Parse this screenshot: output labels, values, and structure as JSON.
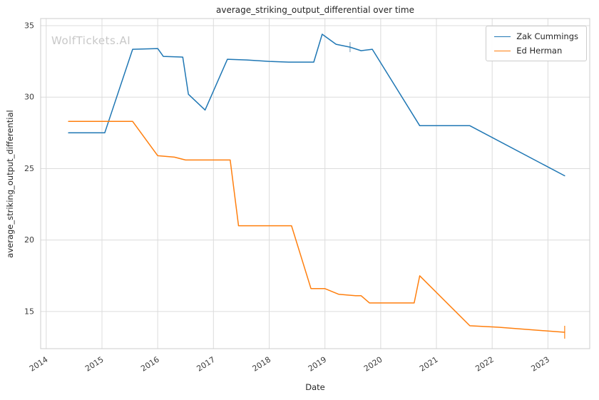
{
  "watermark": "WolfTickets.AI",
  "chart_data": {
    "type": "line",
    "title": "average_striking_output_differential over time",
    "xlabel": "Date",
    "ylabel": "average_striking_output_differential",
    "xlim": [
      2013.9,
      2023.75
    ],
    "ylim": [
      12.4,
      35.5
    ],
    "xticks": [
      2014,
      2015,
      2016,
      2017,
      2018,
      2019,
      2020,
      2021,
      2022,
      2023
    ],
    "yticks": [
      15,
      20,
      25,
      30,
      35
    ],
    "grid": true,
    "legend_position": "upper right",
    "series": [
      {
        "name": "Zak Cummings",
        "color": "#1f77b4",
        "points": [
          [
            2014.4,
            27.5
          ],
          [
            2015.05,
            27.5
          ],
          [
            2015.55,
            33.35
          ],
          [
            2016.0,
            33.4
          ],
          [
            2016.1,
            32.85
          ],
          [
            2016.45,
            32.8
          ],
          [
            2016.55,
            30.2
          ],
          [
            2016.85,
            29.1
          ],
          [
            2017.25,
            32.65
          ],
          [
            2017.6,
            32.6
          ],
          [
            2018.0,
            32.5
          ],
          [
            2018.35,
            32.45
          ],
          [
            2018.8,
            32.45
          ],
          [
            2018.95,
            34.4
          ],
          [
            2019.2,
            33.7
          ],
          [
            2019.45,
            33.5
          ],
          [
            2019.65,
            33.25
          ],
          [
            2019.85,
            33.35
          ],
          [
            2020.7,
            28.0
          ],
          [
            2021.6,
            28.0
          ],
          [
            2023.3,
            24.5
          ]
        ]
      },
      {
        "name": "Ed Herman",
        "color": "#ff7f0e",
        "points": [
          [
            2014.4,
            28.3
          ],
          [
            2015.1,
            28.3
          ],
          [
            2015.55,
            28.3
          ],
          [
            2016.0,
            25.9
          ],
          [
            2016.3,
            25.8
          ],
          [
            2016.5,
            25.6
          ],
          [
            2017.3,
            25.6
          ],
          [
            2017.45,
            21.0
          ],
          [
            2018.4,
            21.0
          ],
          [
            2018.75,
            16.6
          ],
          [
            2019.0,
            16.6
          ],
          [
            2019.25,
            16.2
          ],
          [
            2019.55,
            16.1
          ],
          [
            2019.65,
            16.1
          ],
          [
            2019.8,
            15.6
          ],
          [
            2020.6,
            15.6
          ],
          [
            2020.7,
            17.5
          ],
          [
            2021.6,
            14.0
          ],
          [
            2022.1,
            13.9
          ],
          [
            2023.3,
            13.55
          ]
        ]
      }
    ],
    "error_bars": [
      {
        "series": "Zak Cummings",
        "x": 2019.45,
        "y": 33.5,
        "err": 0.35,
        "color": "#9db8cc"
      },
      {
        "series": "Ed Herman",
        "x": 2023.3,
        "y": 13.55,
        "err": 0.45,
        "color": "#ff9b40"
      }
    ]
  }
}
